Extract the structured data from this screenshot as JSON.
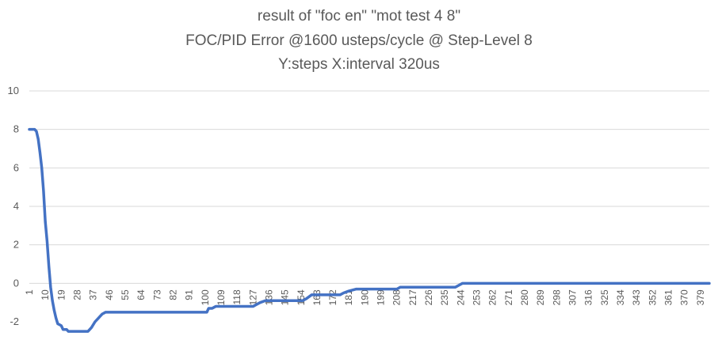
{
  "chart_data": {
    "type": "line",
    "title_lines": [
      "result of \"foc en\" \"mot test 4 8\"",
      "FOC/PID Error @1600 usteps/cycle @ Step-Level 8",
      "Y:steps X:interval 320us"
    ],
    "xlabel": "",
    "ylabel": "",
    "x_range": [
      1,
      384
    ],
    "ylim": [
      -2,
      10
    ],
    "y_ticks": [
      -2,
      0,
      2,
      4,
      6,
      8,
      10
    ],
    "x_tick_labels": [
      "1",
      "10",
      "19",
      "28",
      "37",
      "46",
      "55",
      "64",
      "73",
      "82",
      "91",
      "100",
      "109",
      "118",
      "127",
      "136",
      "145",
      "154",
      "163",
      "172",
      "181",
      "190",
      "199",
      "208",
      "217",
      "226",
      "235",
      "244",
      "253",
      "262",
      "271",
      "280",
      "289",
      "298",
      "307",
      "316",
      "325",
      "334",
      "343",
      "352",
      "361",
      "370",
      "379"
    ],
    "grid": "horizontal",
    "legend": "none",
    "series": [
      {
        "color": "#4472C4",
        "points": [
          [
            1,
            8
          ],
          [
            3,
            8
          ],
          [
            4,
            8
          ],
          [
            5,
            7.9
          ],
          [
            6,
            7.5
          ],
          [
            7,
            6.8
          ],
          [
            8,
            6.0
          ],
          [
            9,
            4.8
          ],
          [
            10,
            3.2
          ],
          [
            11,
            2.2
          ],
          [
            12,
            0.9
          ],
          [
            13,
            -0.2
          ],
          [
            14,
            -0.9
          ],
          [
            15,
            -1.4
          ],
          [
            16,
            -1.8
          ],
          [
            17,
            -2.1
          ],
          [
            19,
            -2.2
          ],
          [
            20,
            -2.4
          ],
          [
            22,
            -2.4
          ],
          [
            23,
            -2.5
          ],
          [
            34,
            -2.5
          ],
          [
            36,
            -2.3
          ],
          [
            38,
            -2.0
          ],
          [
            40,
            -1.8
          ],
          [
            42,
            -1.6
          ],
          [
            44,
            -1.5
          ],
          [
            101,
            -1.5
          ],
          [
            102,
            -1.3
          ],
          [
            104,
            -1.3
          ],
          [
            106,
            -1.2
          ],
          [
            127,
            -1.2
          ],
          [
            129,
            -1.1
          ],
          [
            131,
            -1.0
          ],
          [
            134,
            -0.9
          ],
          [
            155,
            -0.9
          ],
          [
            157,
            -0.8
          ],
          [
            160,
            -0.6
          ],
          [
            176,
            -0.6
          ],
          [
            178,
            -0.5
          ],
          [
            181,
            -0.4
          ],
          [
            185,
            -0.3
          ],
          [
            208,
            -0.3
          ],
          [
            210,
            -0.2
          ],
          [
            241,
            -0.2
          ],
          [
            243,
            -0.1
          ],
          [
            245,
            0
          ],
          [
            384,
            0
          ]
        ]
      }
    ]
  }
}
